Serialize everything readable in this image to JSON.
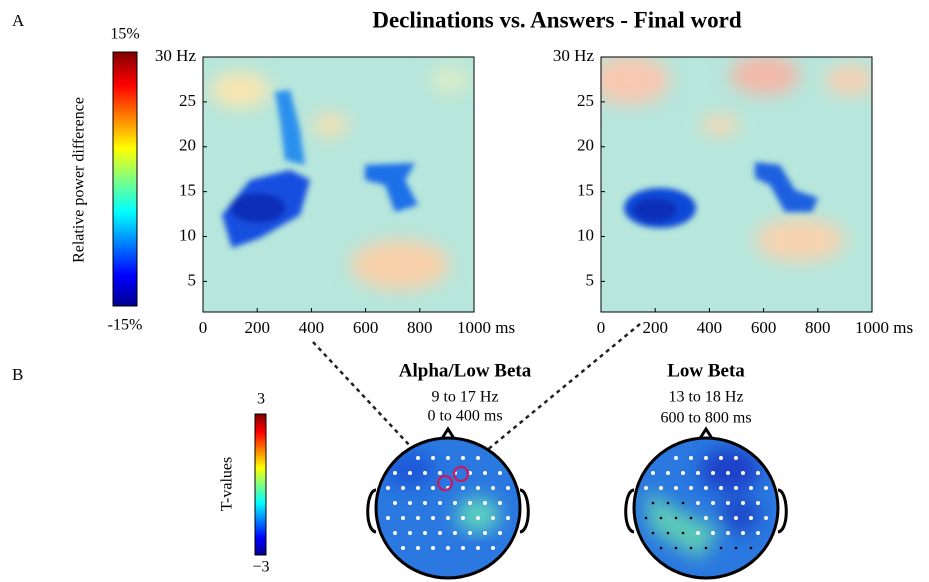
{
  "panel_labels": [
    "A",
    "B"
  ],
  "title": "Declinations vs. Answers - Final word",
  "colorbar_a": {
    "max": "15%",
    "min": "-15%",
    "label": "Relative power difference"
  },
  "colorbar_b": {
    "max": "3",
    "min": "−3",
    "label": "T-values"
  },
  "tf_left": {
    "yticks": [
      "30 Hz",
      "25",
      "20",
      "15",
      "10",
      "5"
    ],
    "xticks": [
      "0",
      "200",
      "400",
      "600",
      "800",
      "1000 ms"
    ]
  },
  "tf_right": {
    "yticks": [
      "30 Hz",
      "25",
      "20",
      "15",
      "10",
      "5"
    ],
    "xticks": [
      "0",
      "200",
      "400",
      "600",
      "800",
      "1000 ms"
    ]
  },
  "topo_left": {
    "title": "Alpha/Low Beta",
    "lines": [
      "9 to 17 Hz",
      "0 to 400 ms"
    ]
  },
  "topo_right": {
    "title": "Low Beta",
    "lines": [
      "13 to 18 Hz",
      "600 to 800 ms"
    ]
  }
}
